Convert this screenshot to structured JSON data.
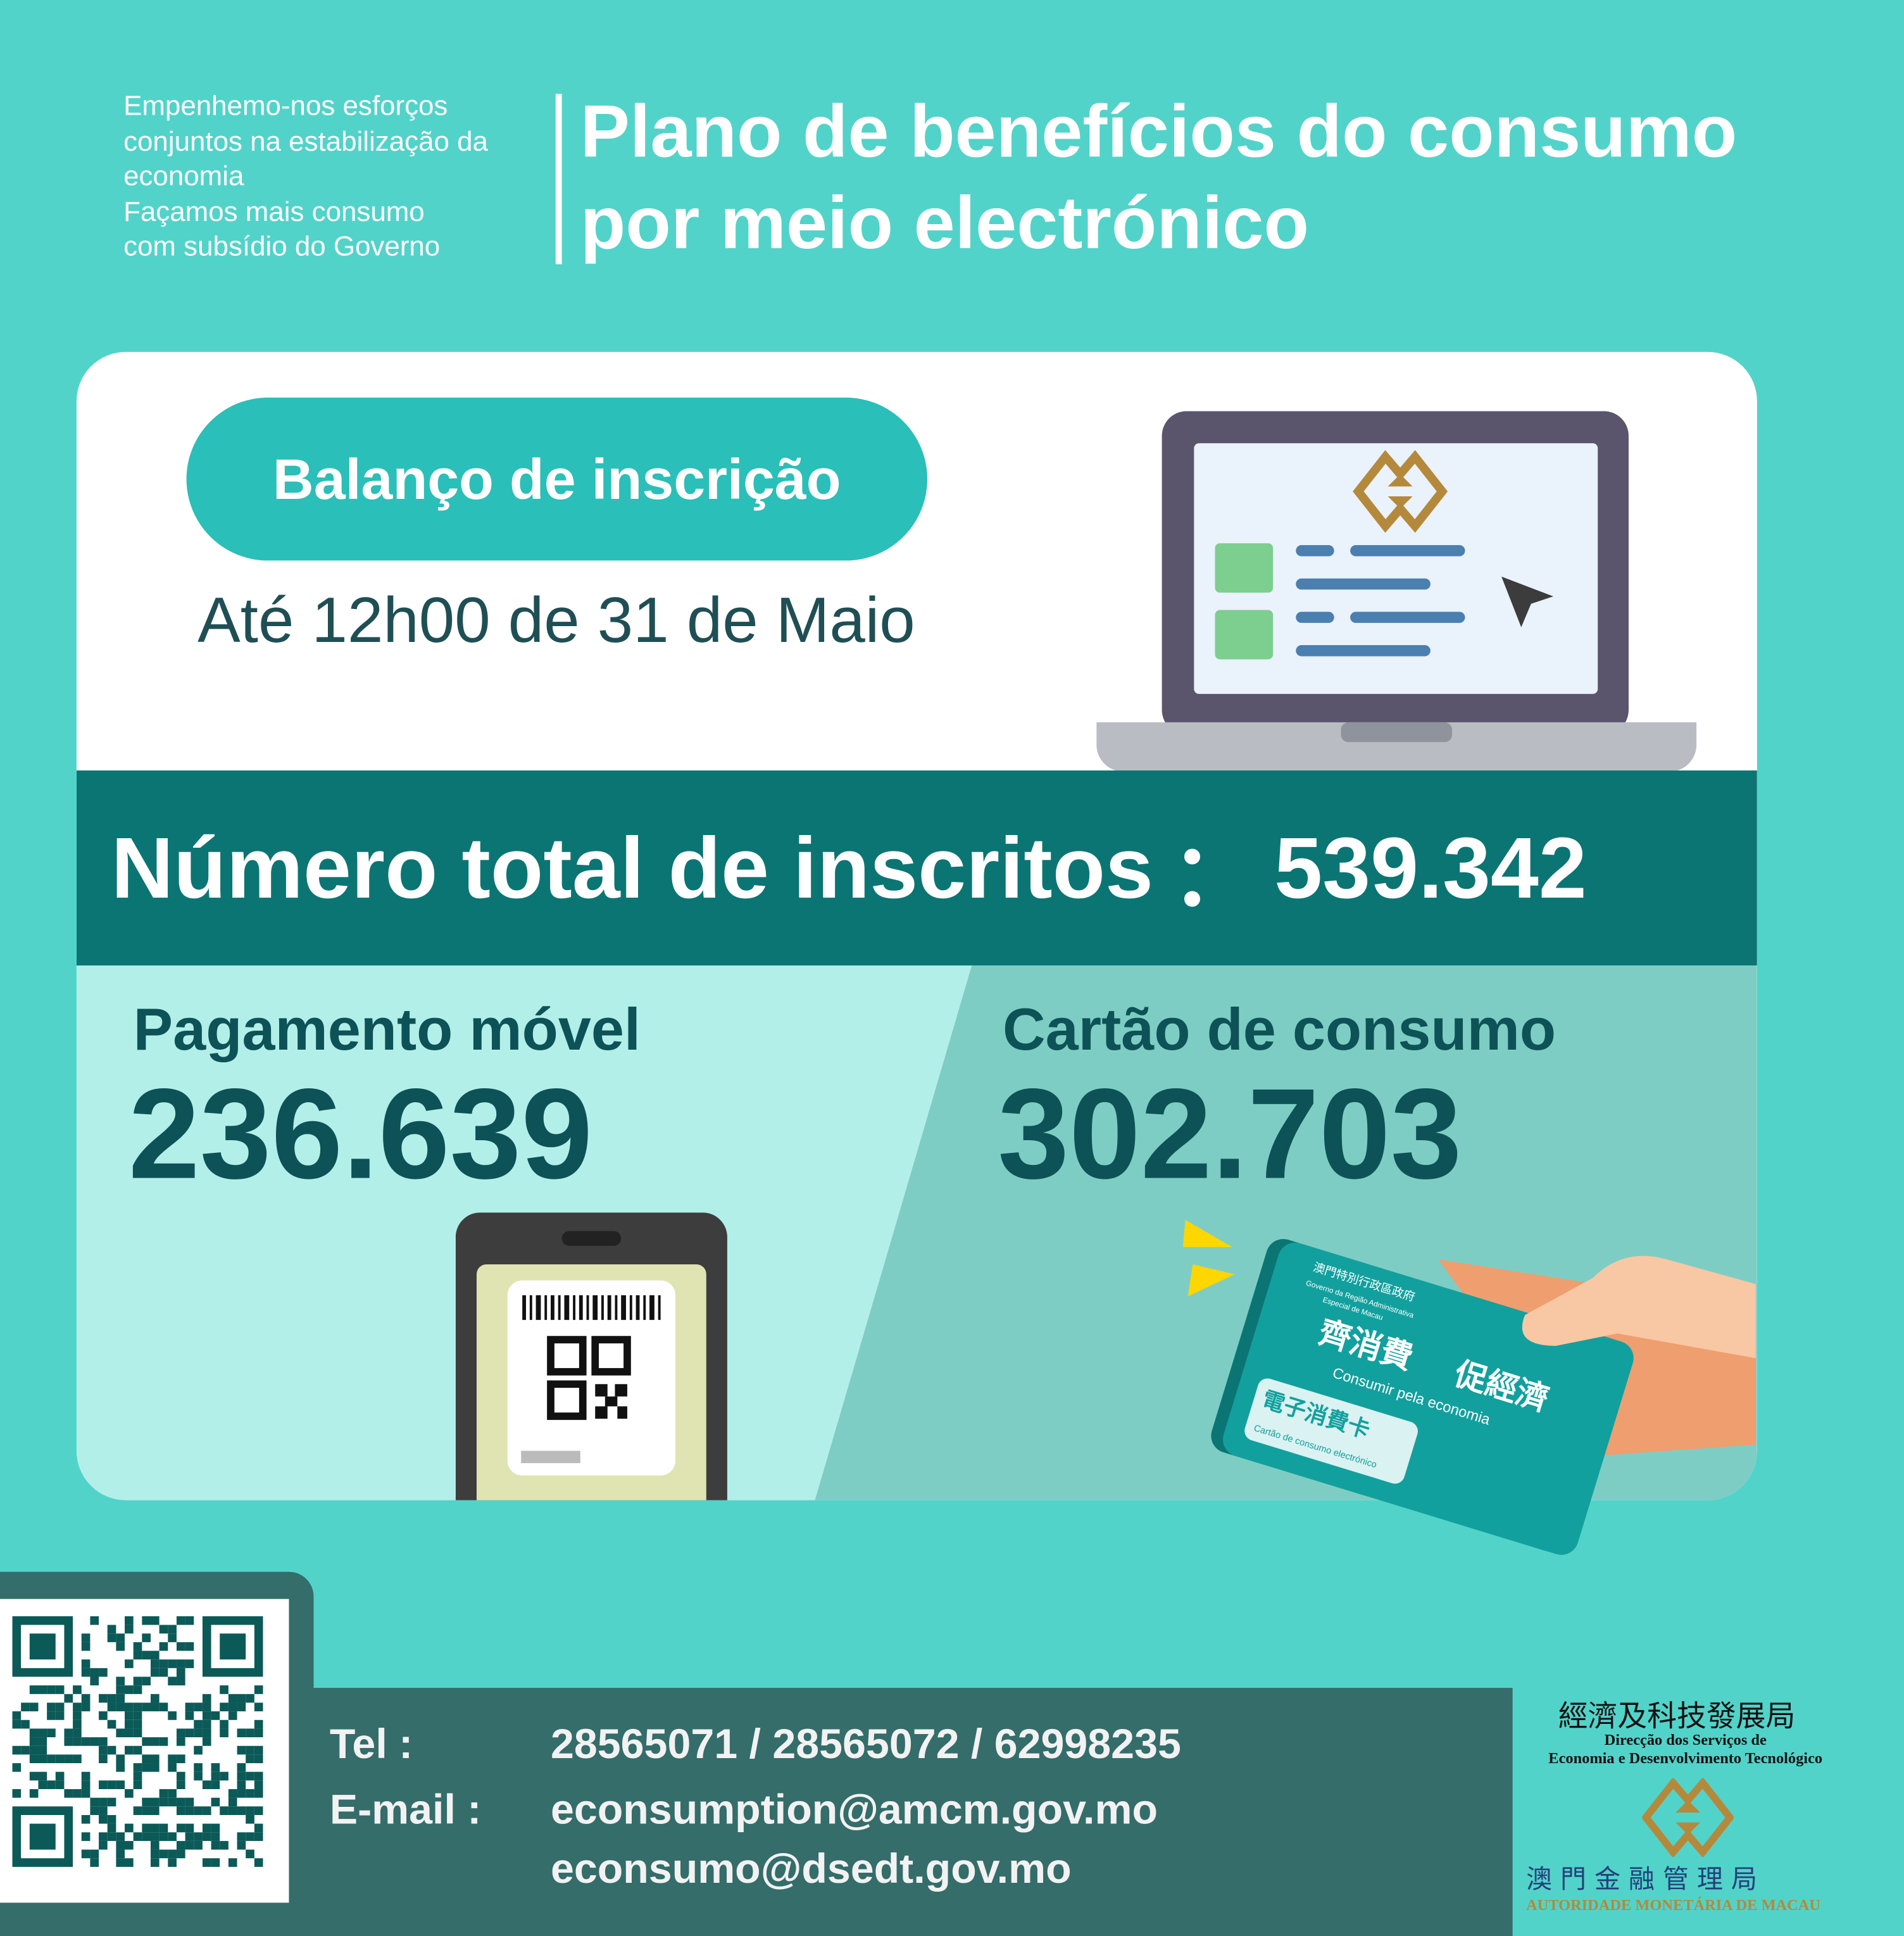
{
  "header": {
    "tagline": [
      "Empenhemo-nos esforços",
      "conjuntos na estabilização da",
      "economia",
      "Façamos mais consumo",
      "com subsídio do Governo"
    ],
    "title_line1": "Plano de benefícios do consumo",
    "title_line2": "por meio electrónico"
  },
  "registration": {
    "badge": "Balanço de inscrição",
    "deadline": "Até 12h00 de 31 de Maio"
  },
  "total": {
    "label": "Número total de inscritos",
    "separator": "：",
    "value": "539.342"
  },
  "mobile": {
    "label": "Pagamento móvel",
    "value": "236.639"
  },
  "card": {
    "label": "Cartão de consumo",
    "value": "302.703",
    "illustration": {
      "gov_cn": "澳門特別行政區政府",
      "gov_pt1": "Governo da Região Administrativa",
      "gov_pt2": "Especial de Macau",
      "slogan_cn1": "齊消費",
      "slogan_cn2": "促經濟",
      "slogan_pt": "Consumir pela economia",
      "card_cn": "電子消費卡",
      "card_pt": "Cartão de consumo electrónico"
    }
  },
  "contact": {
    "tel_label": "Tel :",
    "tel_value": "28565071 / 28565072 / 62998235",
    "email_label": "E-mail :",
    "email1": "econsumption@amcm.gov.mo",
    "email2": "econsumo@dsedt.gov.mo"
  },
  "logos": {
    "dsedt_cn": "經濟及科技發展局",
    "dsedt_pt1": "Direcção dos Serviços de",
    "dsedt_pt2": "Economia e Desenvolvimento Tecnológico",
    "amcm_cn": "澳 門 金 融 管 理 局",
    "amcm_pt": "AUTORIDADE MONETÁRIA DE MACAU"
  },
  "colors": {
    "background": "#52d3c9",
    "band": "#0b7574",
    "pill": "#2abfb8",
    "text_dark": "#0d5256",
    "contact_band": "#346d6a",
    "gold": "#b5893c"
  }
}
